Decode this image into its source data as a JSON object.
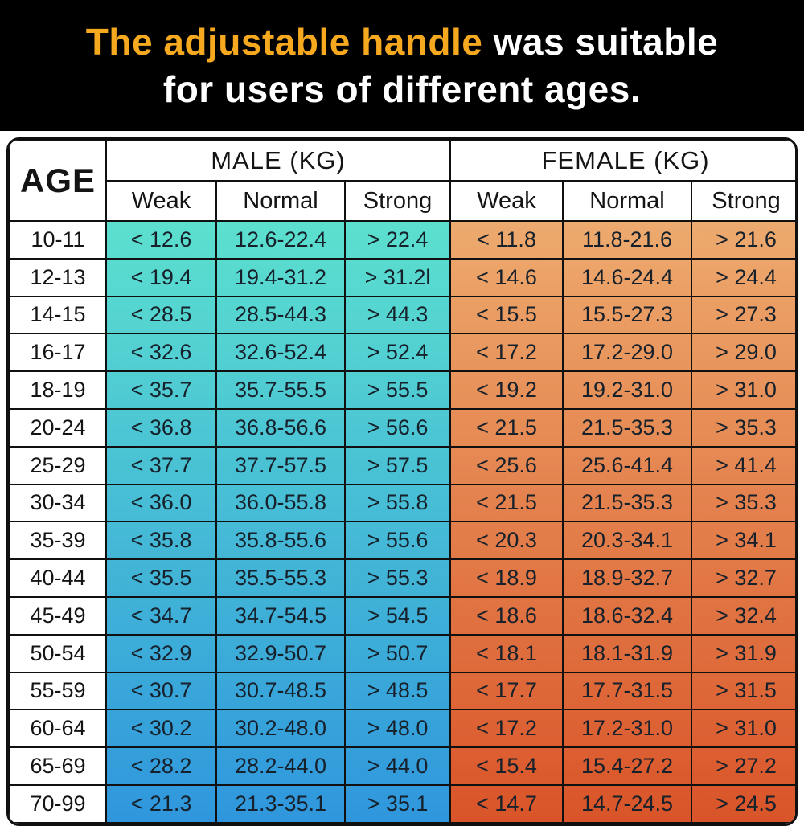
{
  "title": {
    "highlight_text": "The adjustable handle",
    "rest_text": " was suitable",
    "line2": "for users of different ages."
  },
  "colors": {
    "banner_bg": "#000000",
    "title_highlight": "#F6A81F",
    "title_rest": "#FFFFFF",
    "male_top": "#5CE0CE",
    "male_bottom": "#2F96DD",
    "female_top": "#EDAA6E",
    "female_bottom": "#D95429",
    "border": "#101010"
  },
  "chart_data": {
    "type": "table",
    "title": "The adjustable handle was suitable for users of different ages.",
    "unit": "KG",
    "header": {
      "age": "AGE",
      "male": "MALE (KG)",
      "female": "FEMALE (KG)",
      "levels": [
        "Weak",
        "Normal",
        "Strong"
      ]
    },
    "rows": [
      {
        "age": "10-11",
        "male": [
          "< 12.6",
          "12.6-22.4",
          "> 22.4"
        ],
        "female": [
          "< 11.8",
          "11.8-21.6",
          "> 21.6"
        ]
      },
      {
        "age": "12-13",
        "male": [
          "< 19.4",
          "19.4-31.2",
          "> 31.2l"
        ],
        "female": [
          "< 14.6",
          "14.6-24.4",
          "> 24.4"
        ]
      },
      {
        "age": "14-15",
        "male": [
          "< 28.5",
          "28.5-44.3",
          "> 44.3"
        ],
        "female": [
          "< 15.5",
          "15.5-27.3",
          "> 27.3"
        ]
      },
      {
        "age": "16-17",
        "male": [
          "< 32.6",
          "32.6-52.4",
          "> 52.4"
        ],
        "female": [
          "< 17.2",
          "17.2-29.0",
          "> 29.0"
        ]
      },
      {
        "age": "18-19",
        "male": [
          "< 35.7",
          "35.7-55.5",
          "> 55.5"
        ],
        "female": [
          "< 19.2",
          "19.2-31.0",
          "> 31.0"
        ]
      },
      {
        "age": "20-24",
        "male": [
          "< 36.8",
          "36.8-56.6",
          "> 56.6"
        ],
        "female": [
          "< 21.5",
          "21.5-35.3",
          "> 35.3"
        ]
      },
      {
        "age": "25-29",
        "male": [
          "< 37.7",
          "37.7-57.5",
          "> 57.5"
        ],
        "female": [
          "< 25.6",
          "25.6-41.4",
          "> 41.4"
        ]
      },
      {
        "age": "30-34",
        "male": [
          "< 36.0",
          "36.0-55.8",
          "> 55.8"
        ],
        "female": [
          "< 21.5",
          "21.5-35.3",
          "> 35.3"
        ]
      },
      {
        "age": "35-39",
        "male": [
          "< 35.8",
          "35.8-55.6",
          "> 55.6"
        ],
        "female": [
          "< 20.3",
          "20.3-34.1",
          "> 34.1"
        ]
      },
      {
        "age": "40-44",
        "male": [
          "< 35.5",
          "35.5-55.3",
          "> 55.3"
        ],
        "female": [
          "< 18.9",
          "18.9-32.7",
          "> 32.7"
        ]
      },
      {
        "age": "45-49",
        "male": [
          "< 34.7",
          "34.7-54.5",
          "> 54.5"
        ],
        "female": [
          "< 18.6",
          "18.6-32.4",
          "> 32.4"
        ]
      },
      {
        "age": "50-54",
        "male": [
          "< 32.9",
          "32.9-50.7",
          "> 50.7"
        ],
        "female": [
          "< 18.1",
          "18.1-31.9",
          "> 31.9"
        ]
      },
      {
        "age": "55-59",
        "male": [
          "< 30.7",
          "30.7-48.5",
          "> 48.5"
        ],
        "female": [
          "< 17.7",
          "17.7-31.5",
          "> 31.5"
        ]
      },
      {
        "age": "60-64",
        "male": [
          "< 30.2",
          "30.2-48.0",
          "> 48.0"
        ],
        "female": [
          "< 17.2",
          "17.2-31.0",
          "> 31.0"
        ]
      },
      {
        "age": "65-69",
        "male": [
          "< 28.2",
          "28.2-44.0",
          "> 44.0"
        ],
        "female": [
          "< 15.4",
          "15.4-27.2",
          "> 27.2"
        ]
      },
      {
        "age": "70-99",
        "male": [
          "< 21.3",
          "21.3-35.1",
          "> 35.1"
        ],
        "female": [
          "< 14.7",
          "14.7-24.5",
          "> 24.5"
        ]
      }
    ]
  }
}
